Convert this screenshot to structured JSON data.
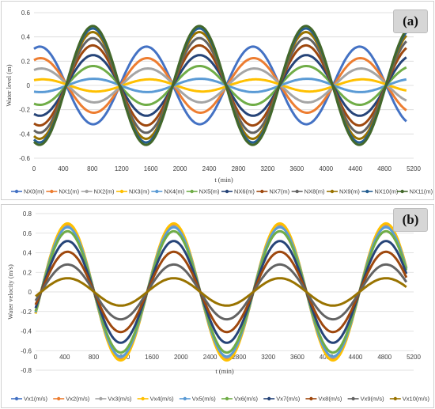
{
  "chart_data": [
    {
      "panel_label": "(a)",
      "type": "line",
      "xlabel": "t (min)",
      "ylabel": "Water level (m)",
      "xlim": [
        0,
        5200
      ],
      "ylim": [
        -0.6,
        0.6
      ],
      "x_ticks": [
        "0",
        "400",
        "800",
        "1200",
        "1600",
        "2000",
        "2400",
        "2800",
        "3200",
        "3600",
        "4000",
        "4400",
        "4800",
        "5200"
      ],
      "y_ticks": [
        "0.6",
        "0.4",
        "0.2",
        "0",
        "-0.2",
        "-0.4",
        "-0.6"
      ],
      "grid": true,
      "legend_position": "bottom",
      "period_min": 1460,
      "x_range": [
        0,
        5100
      ],
      "series": [
        {
          "name": "NX0(m)",
          "amplitude": 0.32,
          "peak_at": 80,
          "color": "#4472C4"
        },
        {
          "name": "NX1(m)",
          "amplitude": 0.225,
          "peak_at": 90,
          "color": "#ED7D31"
        },
        {
          "name": "NX2(m)",
          "amplitude": 0.14,
          "peak_at": 100,
          "color": "#A5A5A5"
        },
        {
          "name": "NX3(m)",
          "amplitude": 0.05,
          "peak_at": 120,
          "color": "#FFC000"
        },
        {
          "name": "NX4(m)",
          "amplitude": 0.055,
          "peak_at": 820,
          "color": "#5B9BD5"
        },
        {
          "name": "NX5(m)",
          "amplitude": 0.16,
          "peak_at": 810,
          "color": "#70AD47"
        },
        {
          "name": "NX6(m)",
          "amplitude": 0.25,
          "peak_at": 810,
          "color": "#264478"
        },
        {
          "name": "NX7(m)",
          "amplitude": 0.33,
          "peak_at": 805,
          "color": "#9E480E"
        },
        {
          "name": "NX8(m)",
          "amplitude": 0.39,
          "peak_at": 805,
          "color": "#636363"
        },
        {
          "name": "NX9(m)",
          "amplitude": 0.44,
          "peak_at": 805,
          "color": "#997300"
        },
        {
          "name": "NX10(m)",
          "amplitude": 0.47,
          "peak_at": 805,
          "color": "#255E91"
        },
        {
          "name": "NX11(m)",
          "amplitude": 0.49,
          "peak_at": 805,
          "color": "#43682B"
        }
      ]
    },
    {
      "panel_label": "(b)",
      "type": "line",
      "xlabel": "t (min)",
      "ylabel": "Water velocity (m/s)",
      "xlim": [
        0,
        5200
      ],
      "ylim": [
        -0.8,
        0.8
      ],
      "x_ticks": [
        "0",
        "400",
        "800",
        "1200",
        "1600",
        "2000",
        "2400",
        "2800",
        "3200",
        "3600",
        "4000",
        "4400",
        "4800",
        "5200"
      ],
      "y_ticks": [
        "0.8",
        "0.6",
        "0.4",
        "0.2",
        "0",
        "-0.2",
        "-0.4",
        "-0.6",
        "-0.8"
      ],
      "grid": true,
      "legend_position": "bottom",
      "period_min": 1460,
      "x_range": [
        0,
        5100
      ],
      "series": [
        {
          "name": "Vx1(m/s)",
          "amplitude": 0.69,
          "peak_at": 440,
          "color": "#4472C4"
        },
        {
          "name": "Vx2(m/s)",
          "amplitude": 0.68,
          "peak_at": 440,
          "color": "#ED7D31"
        },
        {
          "name": "Vx3(m/s)",
          "amplitude": 0.67,
          "peak_at": 440,
          "color": "#A5A5A5"
        },
        {
          "name": "Vx4(m/s)",
          "amplitude": 0.7,
          "peak_at": 440,
          "color": "#FFC000"
        },
        {
          "name": "Vx5(m/s)",
          "amplitude": 0.66,
          "peak_at": 440,
          "color": "#5B9BD5"
        },
        {
          "name": "Vx6(m/s)",
          "amplitude": 0.62,
          "peak_at": 440,
          "color": "#70AD47"
        },
        {
          "name": "Vx7(m/s)",
          "amplitude": 0.52,
          "peak_at": 440,
          "color": "#264478"
        },
        {
          "name": "Vx8(m/s)",
          "amplitude": 0.41,
          "peak_at": 440,
          "color": "#9E480E"
        },
        {
          "name": "Vx9(m/s)",
          "amplitude": 0.28,
          "peak_at": 440,
          "color": "#636363"
        },
        {
          "name": "Vx10(m/s)",
          "amplitude": 0.14,
          "peak_at": 440,
          "color": "#997300"
        }
      ]
    }
  ]
}
